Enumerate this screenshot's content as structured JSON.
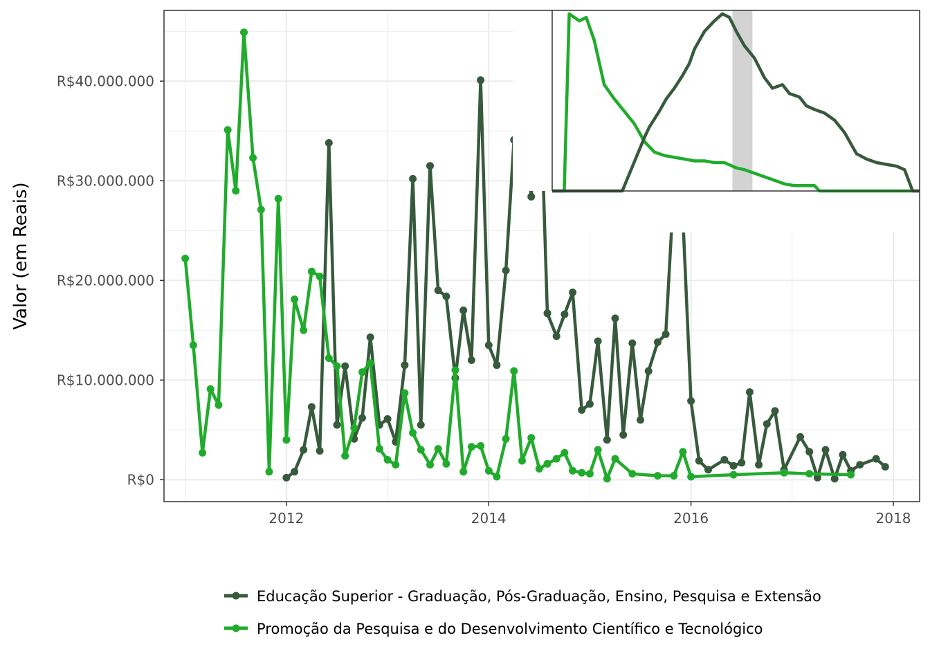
{
  "chart_data": {
    "type": "line",
    "title": "",
    "xlabel": "",
    "ylabel": "Valor (em Reais)",
    "grid": true,
    "legend_position": "bottom",
    "x_ticks": [
      "2012",
      "2014",
      "2016",
      "2018"
    ],
    "y_ticks": [
      "R$0",
      "R$10.000.000",
      "R$20.000.000",
      "R$30.000.000",
      "R$40.000.000"
    ],
    "xlim": [
      2010.79,
      2018.26
    ],
    "ylim": [
      -2200000,
      47100000
    ],
    "colors": {
      "series_dark": "#375a3c",
      "series_light": "#21ab2c",
      "highlight_band": "#d3d3d3"
    },
    "series": [
      {
        "name": "Educação Superior - Graduação, Pós-Graduação, Ensino, Pesquisa e Extensão",
        "color": "#375a3c",
        "x": [
          2012.0,
          2012.08,
          2012.17,
          2012.25,
          2012.33,
          2012.42,
          2012.5,
          2012.58,
          2012.67,
          2012.75,
          2012.83,
          2012.92,
          2013.0,
          2013.08,
          2013.17,
          2013.25,
          2013.33,
          2013.42,
          2013.5,
          2013.58,
          2013.67,
          2013.75,
          2013.83,
          2013.92,
          2014.0,
          2014.08,
          2014.17,
          2014.25,
          2014.33,
          2014.42,
          2014.5,
          2014.58,
          2014.67,
          2014.75,
          2014.83,
          2014.92,
          2015.0,
          2015.08,
          2015.17,
          2015.25,
          2015.33,
          2015.42,
          2015.5,
          2015.58,
          2015.67,
          2015.75,
          2015.83,
          2015.92,
          2016.0,
          2016.08,
          2016.17,
          2016.33,
          2016.42,
          2016.5,
          2016.58,
          2016.67,
          2016.75,
          2016.83,
          2016.92,
          2017.08,
          2017.17,
          2017.25,
          2017.33,
          2017.42,
          2017.5,
          2017.58,
          2017.67,
          2017.83,
          2017.92
        ],
        "y": [
          200000,
          800000,
          3000000,
          7300000,
          2900000,
          33800000,
          5500000,
          11400000,
          4100000,
          6200000,
          14300000,
          5500000,
          6100000,
          3800000,
          11500000,
          30200000,
          5500000,
          31500000,
          19000000,
          18400000,
          10200000,
          17000000,
          12000000,
          40100000,
          13500000,
          11500000,
          21000000,
          34100000,
          38600000,
          28400000,
          42800000,
          16700000,
          14400000,
          16600000,
          18800000,
          7000000,
          7600000,
          13900000,
          4000000,
          16200000,
          4500000,
          13700000,
          6000000,
          10900000,
          13800000,
          14600000,
          29200000,
          26300000,
          7900000,
          1900000,
          1000000,
          2000000,
          1400000,
          1700000,
          8800000,
          1500000,
          5600000,
          6900000,
          1000000,
          4300000,
          2800000,
          200000,
          3000000,
          100000,
          2500000,
          900000,
          1500000,
          2100000,
          1300000
        ]
      },
      {
        "name": "Promoção da Pesquisa e do Desenvolvimento Científico e Tecnológico",
        "color": "#21ab2c",
        "x": [
          2011.0,
          2011.08,
          2011.17,
          2011.25,
          2011.33,
          2011.42,
          2011.5,
          2011.58,
          2011.67,
          2011.75,
          2011.83,
          2011.92,
          2012.0,
          2012.08,
          2012.17,
          2012.25,
          2012.33,
          2012.42,
          2012.5,
          2012.58,
          2012.67,
          2012.75,
          2012.83,
          2012.92,
          2013.0,
          2013.08,
          2013.17,
          2013.25,
          2013.33,
          2013.42,
          2013.5,
          2013.58,
          2013.67,
          2013.75,
          2013.83,
          2013.92,
          2014.0,
          2014.08,
          2014.17,
          2014.25,
          2014.33,
          2014.42,
          2014.5,
          2014.58,
          2014.67,
          2014.75,
          2014.83,
          2014.92,
          2015.0,
          2015.08,
          2015.17,
          2015.25,
          2015.42,
          2015.67,
          2015.83,
          2015.92,
          2016.0,
          2016.42,
          2016.92,
          2017.17,
          2017.58
        ],
        "y": [
          22200000,
          13500000,
          2700000,
          9100000,
          7500000,
          35100000,
          29000000,
          44900000,
          32300000,
          27100000,
          800000,
          28200000,
          4000000,
          18100000,
          15000000,
          20900000,
          20400000,
          12200000,
          11400000,
          2400000,
          5200000,
          10800000,
          11700000,
          3100000,
          2000000,
          1500000,
          8700000,
          4700000,
          3000000,
          1500000,
          3100000,
          1600000,
          11000000,
          800000,
          3300000,
          3400000,
          900000,
          300000,
          4100000,
          10900000,
          1900000,
          4200000,
          1100000,
          1600000,
          2100000,
          2700000,
          900000,
          700000,
          600000,
          3000000,
          100000,
          2100000,
          600000,
          400000,
          400000,
          2800000,
          300000,
          500000,
          700000,
          600000,
          500000
        ]
      }
    ],
    "inset": {
      "description_visible": false,
      "highlight_band_x": [
        2016.38,
        2016.58
      ],
      "xlim": [
        2014.58,
        2018.25
      ],
      "dark_line_x": [
        2014.58,
        2015.28,
        2015.5,
        2015.55,
        2015.65,
        2015.72,
        2015.8,
        2015.88,
        2015.95,
        2016.0,
        2016.1,
        2016.2,
        2016.28,
        2016.35,
        2016.42,
        2016.5,
        2016.6,
        2016.7,
        2016.78,
        2016.88,
        2016.95,
        2017.05,
        2017.12,
        2017.2,
        2017.3,
        2017.4,
        2017.5,
        2017.62,
        2017.72,
        2017.82,
        2017.92,
        2018.02,
        2018.1,
        2018.18,
        2018.25
      ],
      "dark_line_y": [
        0,
        0,
        30,
        36,
        45,
        52,
        58,
        65,
        72,
        80,
        90,
        96,
        100,
        98,
        90,
        82,
        75,
        64,
        58,
        60,
        55,
        53,
        48,
        46,
        44,
        40,
        33,
        21,
        18,
        16,
        15,
        14,
        12,
        0,
        0
      ],
      "light_line_x": [
        2014.58,
        2014.7,
        2014.75,
        2014.85,
        2014.92,
        2015.0,
        2015.1,
        2015.2,
        2015.3,
        2015.4,
        2015.5,
        2015.6,
        2015.7,
        2015.8,
        2015.9,
        2016.0,
        2016.1,
        2016.2,
        2016.3,
        2016.42,
        2016.5,
        2016.6,
        2016.7,
        2016.8,
        2016.9,
        2017.0,
        2017.1,
        2017.2,
        2017.25,
        2018.25
      ],
      "light_line_y": [
        0,
        0,
        100,
        96,
        98,
        85,
        60,
        52,
        45,
        38,
        28,
        22,
        20,
        19,
        18,
        17,
        17,
        16,
        16,
        13,
        12,
        10,
        8,
        6,
        4,
        3,
        3,
        3,
        0,
        0
      ]
    }
  }
}
